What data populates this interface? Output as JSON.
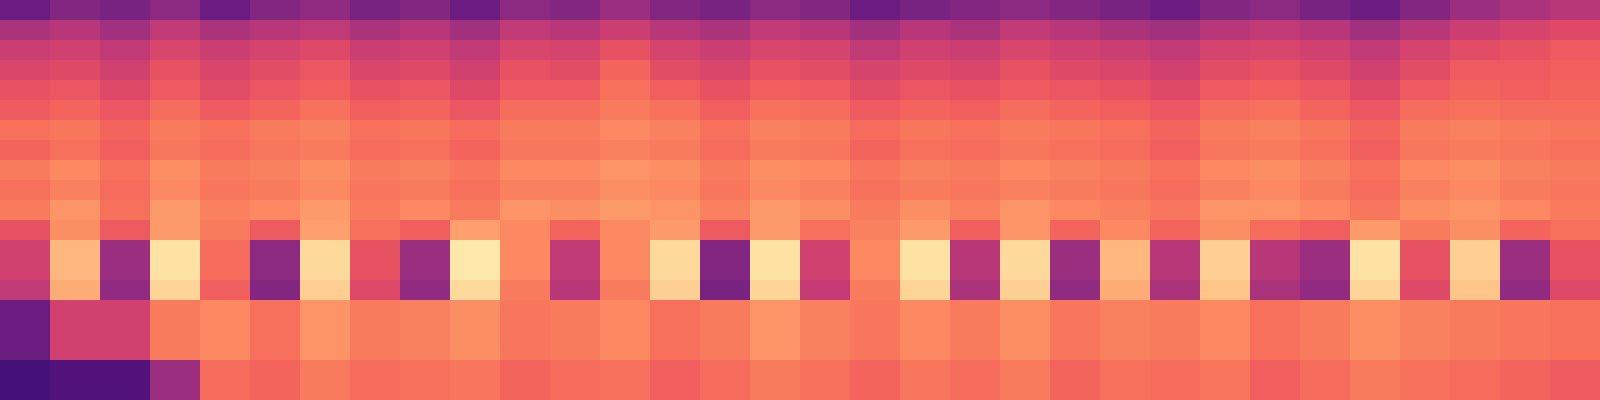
{
  "chart_data": {
    "type": "heatmap",
    "tick_labels": false,
    "zlim": [
      -80,
      0
    ],
    "values": [
      [
        -55,
        -50,
        -52,
        -48,
        -55,
        -50,
        -47,
        -52,
        -50,
        -55,
        -48,
        -50,
        -45,
        -50,
        -52,
        -48,
        -50,
        -55,
        -52,
        -50,
        -48,
        -50,
        -52,
        -55,
        -50,
        -48,
        -52,
        -55,
        -50,
        -45,
        -42,
        -40
      ],
      [
        -42,
        -40,
        -44,
        -38,
        -42,
        -40,
        -38,
        -42,
        -40,
        -44,
        -38,
        -40,
        -36,
        -40,
        -42,
        -38,
        -40,
        -44,
        -40,
        -42,
        -38,
        -40,
        -42,
        -44,
        -40,
        -38,
        -40,
        -44,
        -40,
        -36,
        -34,
        -32
      ],
      [
        -36,
        -35,
        -38,
        -33,
        -36,
        -34,
        -32,
        -36,
        -35,
        -38,
        -33,
        -34,
        -30,
        -34,
        -36,
        -33,
        -34,
        -38,
        -35,
        -36,
        -33,
        -35,
        -36,
        -38,
        -34,
        -33,
        -35,
        -38,
        -34,
        -31,
        -30,
        -28
      ],
      [
        -33,
        -32,
        -35,
        -30,
        -33,
        -31,
        -29,
        -33,
        -32,
        -35,
        -30,
        -31,
        -26,
        -31,
        -33,
        -30,
        -31,
        -34,
        -32,
        -33,
        -30,
        -32,
        -33,
        -35,
        -31,
        -30,
        -32,
        -35,
        -31,
        -28,
        -28,
        -27
      ],
      [
        -30,
        -29,
        -32,
        -28,
        -31,
        -29,
        -27,
        -30,
        -29,
        -32,
        -28,
        -28,
        -24,
        -27,
        -30,
        -27,
        -28,
        -31,
        -29,
        -30,
        -28,
        -29,
        -30,
        -32,
        -28,
        -27,
        -29,
        -32,
        -28,
        -26,
        -27,
        -26
      ],
      [
        -28,
        -26,
        -29,
        -25,
        -28,
        -26,
        -24,
        -27,
        -26,
        -29,
        -25,
        -25,
        -22,
        -24,
        -27,
        -24,
        -25,
        -28,
        -26,
        -27,
        -25,
        -26,
        -27,
        -29,
        -25,
        -24,
        -26,
        -29,
        -25,
        -24,
        -25,
        -25
      ],
      [
        -24,
        -23,
        -26,
        -22,
        -24,
        -22,
        -21,
        -24,
        -23,
        -25,
        -22,
        -22,
        -20,
        -21,
        -24,
        -21,
        -22,
        -25,
        -23,
        -24,
        -22,
        -23,
        -24,
        -26,
        -22,
        -21,
        -23,
        -26,
        -22,
        -21,
        -22,
        -23
      ],
      [
        -26,
        -24,
        -27,
        -23,
        -25,
        -23,
        -22,
        -25,
        -24,
        -26,
        -23,
        -23,
        -21,
        -22,
        -25,
        -22,
        -23,
        -26,
        -24,
        -25,
        -23,
        -24,
        -25,
        -27,
        -23,
        -22,
        -24,
        -27,
        -23,
        -22,
        -23,
        -24
      ],
      [
        -22,
        -20,
        -24,
        -19,
        -22,
        -21,
        -19,
        -22,
        -21,
        -23,
        -20,
        -20,
        -18,
        -19,
        -22,
        -19,
        -20,
        -23,
        -21,
        -22,
        -20,
        -21,
        -22,
        -24,
        -20,
        -19,
        -21,
        -24,
        -20,
        -19,
        -21,
        -22
      ],
      [
        -24,
        -21,
        -25,
        -20,
        -23,
        -22,
        -20,
        -23,
        -22,
        -24,
        -21,
        -21,
        -19,
        -20,
        -23,
        -20,
        -21,
        -24,
        -22,
        -23,
        -21,
        -22,
        -23,
        -25,
        -21,
        -20,
        -22,
        -25,
        -21,
        -20,
        -22,
        -23
      ],
      [
        -22,
        -18,
        -24,
        -17,
        -21,
        -20,
        -17,
        -22,
        -20,
        -22,
        -18,
        -19,
        -17,
        -18,
        -21,
        -17,
        -19,
        -22,
        -19,
        -21,
        -18,
        -20,
        -21,
        -23,
        -18,
        -18,
        -20,
        -23,
        -19,
        -18,
        -20,
        -22
      ],
      [
        -30,
        -19,
        -28,
        -17,
        -22,
        -28,
        -16,
        -24,
        -27,
        -16,
        -20,
        -26,
        -20,
        -17,
        -28,
        -17,
        -24,
        -21,
        -17,
        -27,
        -18,
        -26,
        -20,
        -26,
        -19,
        -25,
        -27,
        -17,
        -22,
        -19,
        -26,
        -24
      ],
      [
        -35,
        -12,
        -45,
        -5,
        -25,
        -48,
        -6,
        -30,
        -45,
        -4,
        -20,
        -38,
        -20,
        -6,
        -50,
        -5,
        -35,
        -20,
        -5,
        -40,
        -6,
        -45,
        -12,
        -40,
        -8,
        -40,
        -45,
        -5,
        -30,
        -8,
        -45,
        -30
      ],
      [
        -35,
        -12,
        -45,
        -5,
        -25,
        -48,
        -6,
        -30,
        -45,
        -4,
        -20,
        -38,
        -20,
        -6,
        -50,
        -5,
        -35,
        -20,
        -5,
        -40,
        -6,
        -45,
        -12,
        -40,
        -8,
        -40,
        -45,
        -5,
        -30,
        -8,
        -45,
        -30
      ],
      [
        -38,
        -14,
        -47,
        -7,
        -27,
        -50,
        -8,
        -32,
        -47,
        -6,
        -22,
        -40,
        -22,
        -8,
        -52,
        -7,
        -37,
        -22,
        -7,
        -42,
        -8,
        -47,
        -14,
        -42,
        -10,
        -42,
        -47,
        -7,
        -32,
        -10,
        -47,
        -32
      ],
      [
        -55,
        -35,
        -35,
        -22,
        -20,
        -24,
        -18,
        -22,
        -21,
        -19,
        -23,
        -22,
        -20,
        -24,
        -22,
        -18,
        -21,
        -23,
        -20,
        -22,
        -19,
        -23,
        -21,
        -22,
        -20,
        -24,
        -22,
        -19,
        -21,
        -22,
        -23,
        -24
      ],
      [
        -55,
        -35,
        -35,
        -22,
        -20,
        -24,
        -18,
        -22,
        -21,
        -19,
        -23,
        -22,
        -20,
        -24,
        -22,
        -18,
        -21,
        -23,
        -20,
        -22,
        -19,
        -23,
        -21,
        -22,
        -20,
        -24,
        -22,
        -19,
        -21,
        -22,
        -23,
        -24
      ],
      [
        -55,
        -35,
        -35,
        -22,
        -20,
        -24,
        -18,
        -22,
        -21,
        -19,
        -23,
        -22,
        -20,
        -24,
        -22,
        -18,
        -21,
        -23,
        -20,
        -22,
        -19,
        -23,
        -21,
        -22,
        -20,
        -24,
        -22,
        -19,
        -21,
        -22,
        -23,
        -24
      ],
      [
        -62,
        -60,
        -60,
        -45,
        -25,
        -26,
        -22,
        -25,
        -24,
        -23,
        -26,
        -25,
        -24,
        -27,
        -25,
        -22,
        -24,
        -26,
        -23,
        -25,
        -22,
        -26,
        -24,
        -25,
        -23,
        -27,
        -25,
        -22,
        -24,
        -25,
        -26,
        -28
      ],
      [
        -62,
        -60,
        -60,
        -45,
        -25,
        -26,
        -22,
        -25,
        -24,
        -23,
        -26,
        -25,
        -24,
        -27,
        -25,
        -22,
        -24,
        -26,
        -23,
        -25,
        -22,
        -26,
        -24,
        -25,
        -23,
        -27,
        -25,
        -22,
        -24,
        -25,
        -26,
        -28
      ]
    ]
  }
}
